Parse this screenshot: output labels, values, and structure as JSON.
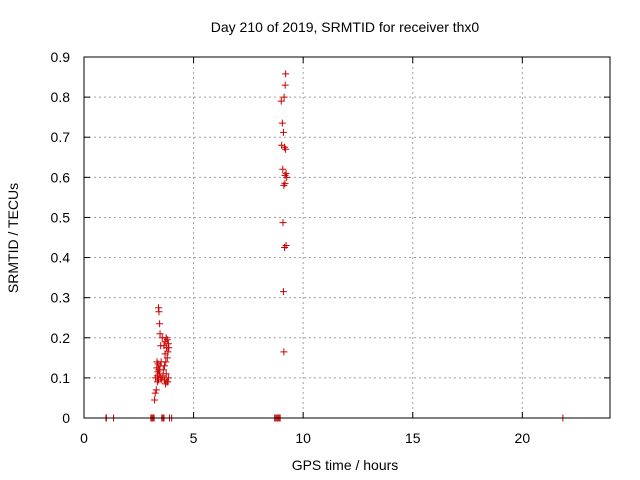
{
  "chart_data": {
    "type": "scatter",
    "title": "Day 210 of 2019, SRMTID for receiver thx0",
    "xlabel": "GPS time / hours",
    "ylabel": "SRMTID / TECUs",
    "xlim": [
      0,
      24
    ],
    "ylim": [
      0,
      0.9
    ],
    "xticks": [
      0,
      5,
      10,
      15,
      20
    ],
    "yticks": [
      0,
      0.1,
      0.2,
      0.3,
      0.4,
      0.5,
      0.6,
      0.7,
      0.8,
      0.9
    ],
    "xtick_labels": [
      "0",
      "5",
      "10",
      "15",
      "20"
    ],
    "ytick_labels": [
      "0",
      "0.1",
      "0.2",
      "0.3",
      "0.4",
      "0.5",
      "0.6",
      "0.7",
      "0.8",
      "0.9"
    ],
    "grid": true,
    "marker": "+",
    "series": [
      {
        "color": "#cc0000",
        "x": [
          1.0,
          1.02,
          1.35,
          3.05,
          3.1,
          3.15,
          3.2,
          3.22,
          3.25,
          3.27,
          3.3,
          3.32,
          3.33,
          3.35,
          3.35,
          3.37,
          3.38,
          3.4,
          3.4,
          3.42,
          3.42,
          3.45,
          3.45,
          3.47,
          3.47,
          3.5,
          3.5,
          3.52,
          3.55,
          3.55,
          3.57,
          3.6,
          3.6,
          3.62,
          3.65,
          3.65,
          3.67,
          3.68,
          3.7,
          3.7,
          3.72,
          3.73,
          3.75,
          3.75,
          3.77,
          3.78,
          3.8,
          3.8,
          3.82,
          3.83,
          3.85,
          3.85,
          3.87,
          3.9,
          4.0,
          8.7,
          8.75,
          8.8,
          8.85,
          8.9,
          8.95,
          9.0,
          9.02,
          9.05,
          9.07,
          9.08,
          9.1,
          9.1,
          9.12,
          9.12,
          9.13,
          9.15,
          9.15,
          9.17,
          9.17,
          9.18,
          9.2,
          9.2,
          9.22,
          9.22,
          9.25,
          21.85
        ],
        "y": [
          0,
          0,
          0,
          0,
          0,
          0,
          0,
          0.045,
          0.062,
          0.1,
          0.07,
          0.125,
          0.14,
          0.09,
          0.105,
          0.115,
          0.135,
          0.095,
          0.275,
          0.12,
          0.265,
          0.11,
          0.235,
          0.13,
          0.21,
          0.1,
          0.18,
          0.14,
          0.0,
          0.095,
          0.2,
          0.105,
          0.0,
          0.12,
          0.18,
          0.0,
          0.13,
          0.095,
          0.16,
          0.19,
          0.085,
          0.14,
          0.11,
          0.2,
          0.175,
          0.09,
          0.15,
          0.195,
          0.09,
          0.165,
          0.1,
          0.185,
          0.175,
          0.0,
          0.0,
          0.0,
          0.0,
          0.0,
          0.0,
          0.0,
          0.0,
          0.79,
          0.68,
          0.735,
          0.62,
          0.487,
          0.315,
          0.712,
          0.58,
          0.165,
          0.8,
          0.675,
          0.425,
          0.605,
          0.585,
          0.83,
          0.858,
          0.67,
          0.43,
          0.61,
          0.6,
          0.0
        ]
      }
    ]
  }
}
